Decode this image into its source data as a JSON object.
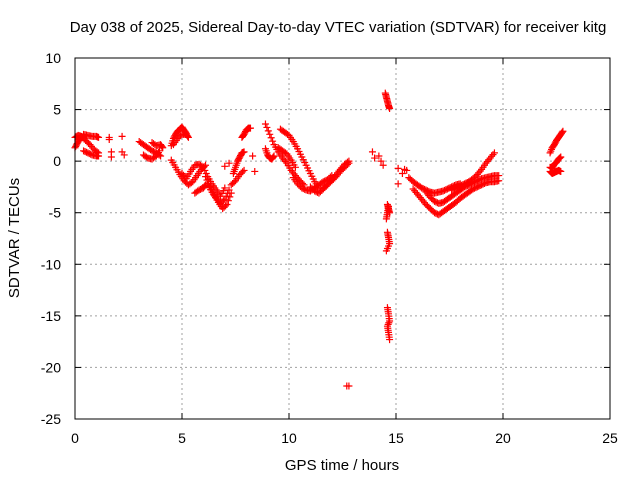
{
  "chart_data": {
    "type": "scatter",
    "title": "Day 038 of 2025, Sidereal Day-to-day VTEC variation (SDTVAR) for receiver kitg",
    "xlabel": "GPS time / hours",
    "ylabel": "SDTVAR / TECUs",
    "xlim": [
      0,
      25
    ],
    "ylim": [
      -25,
      10
    ],
    "xticks": [
      0,
      5,
      10,
      15,
      20,
      25
    ],
    "xtick_labels": [
      "0",
      "5",
      "10",
      "15",
      "20",
      "25"
    ],
    "yticks": [
      10,
      5,
      0,
      -5,
      -10,
      -15,
      -20,
      -25
    ],
    "ytick_labels": [
      "10",
      "5",
      "0",
      "-5",
      "-10",
      "-15",
      "-20",
      "-25"
    ],
    "grid": true,
    "marker": "+",
    "marker_color": "#ff0000",
    "series": [
      {
        "name": "arc-00",
        "x": [
          0.0,
          0.1,
          0.2,
          0.3,
          0.4
        ],
        "y": [
          1.3,
          1.7,
          2.1,
          2.3,
          2.4
        ]
      },
      {
        "name": "arc-01",
        "x": [
          0.0,
          0.15,
          0.3,
          0.5,
          0.7,
          0.9,
          1.1
        ],
        "y": [
          2.3,
          2.5,
          2.4,
          2.0,
          1.6,
          1.1,
          0.8
        ]
      },
      {
        "name": "arc-02",
        "x": [
          0.4,
          0.6,
          0.8,
          1.0,
          1.1
        ],
        "y": [
          2.6,
          2.5,
          2.4,
          2.4,
          2.3
        ]
      },
      {
        "name": "arc-03",
        "x": [
          0.4,
          0.6,
          0.8,
          1.0,
          1.1
        ],
        "y": [
          1.0,
          0.8,
          0.6,
          0.5,
          0.5
        ]
      },
      {
        "name": "scatter-a",
        "x": [
          1.6,
          1.6,
          1.7,
          1.7,
          2.2,
          2.2,
          2.3
        ],
        "y": [
          2.3,
          2.1,
          0.9,
          0.4,
          2.4,
          0.9,
          0.6
        ]
      },
      {
        "name": "arc-04",
        "x": [
          3.0,
          3.2,
          3.4,
          3.6,
          3.8,
          4.0
        ],
        "y": [
          1.9,
          1.6,
          1.3,
          1.0,
          0.8,
          0.5
        ]
      },
      {
        "name": "arc-05",
        "x": [
          3.2,
          3.4,
          3.6,
          3.8,
          3.95
        ],
        "y": [
          0.6,
          0.3,
          0.2,
          0.5,
          1.0
        ]
      },
      {
        "name": "arc-06",
        "x": [
          3.6,
          3.8,
          4.0,
          4.1
        ],
        "y": [
          1.8,
          1.5,
          1.6,
          1.3
        ]
      },
      {
        "name": "arc-07",
        "x": [
          4.5,
          4.6,
          4.7,
          4.8,
          4.9,
          5.0,
          5.1,
          5.2
        ],
        "y": [
          1.5,
          2.2,
          2.6,
          2.9,
          3.1,
          3.3,
          3.0,
          2.7
        ]
      },
      {
        "name": "arc-08",
        "x": [
          4.6,
          4.8,
          5.0,
          5.2,
          5.3
        ],
        "y": [
          1.6,
          2.2,
          2.6,
          2.6,
          2.3
        ]
      },
      {
        "name": "arc-09",
        "x": [
          4.5,
          4.7,
          4.9,
          5.1,
          5.3,
          5.5,
          5.7,
          5.9,
          6.1
        ],
        "y": [
          0.1,
          -0.6,
          -1.3,
          -1.9,
          -2.3,
          -2.0,
          -1.4,
          -0.8,
          -0.4
        ]
      },
      {
        "name": "arc-10",
        "x": [
          5.0,
          5.2,
          5.4,
          5.6,
          5.8,
          6.0,
          6.2,
          6.4,
          6.6,
          6.8,
          7.0
        ],
        "y": [
          -1.2,
          -1.7,
          -1.0,
          -0.4,
          -0.3,
          -0.6,
          -1.5,
          -2.2,
          -2.8,
          -3.4,
          -2.6
        ]
      },
      {
        "name": "arc-11",
        "x": [
          6.1,
          6.3,
          6.5,
          6.7,
          6.9,
          7.1,
          7.3
        ],
        "y": [
          -1.5,
          -2.5,
          -3.3,
          -4.0,
          -4.6,
          -4.2,
          -3.1
        ]
      },
      {
        "name": "arc-12",
        "x": [
          6.2,
          6.4,
          6.6,
          6.8,
          7.0,
          7.2
        ],
        "y": [
          -2.3,
          -3.0,
          -3.6,
          -4.1,
          -3.7,
          -2.8
        ]
      },
      {
        "name": "arc-13",
        "x": [
          5.6,
          5.8,
          6.0,
          6.1
        ],
        "y": [
          -3.1,
          -2.8,
          -2.6,
          -2.3
        ]
      },
      {
        "name": "arc-14",
        "x": [
          7.4,
          7.5,
          7.6,
          7.7,
          7.8,
          7.9
        ],
        "y": [
          -1.2,
          -0.6,
          0.0,
          0.4,
          0.8,
          0.9
        ]
      },
      {
        "name": "arc-15",
        "x": [
          7.3,
          7.5,
          7.7,
          7.9
        ],
        "y": [
          -2.3,
          -1.9,
          -1.3,
          -0.9
        ]
      },
      {
        "name": "arc-16",
        "x": [
          7.8,
          7.9,
          8.0,
          8.1,
          8.2
        ],
        "y": [
          2.3,
          2.6,
          3.0,
          3.2,
          3.2
        ]
      },
      {
        "name": "scatter-b",
        "x": [
          7.0,
          7.2,
          8.3,
          8.4
        ],
        "y": [
          -0.5,
          -0.2,
          0.5,
          -1.0
        ]
      },
      {
        "name": "arc-17",
        "x": [
          8.9,
          9.1,
          9.3,
          9.5,
          9.7,
          9.9,
          10.1,
          10.3,
          10.5,
          10.7
        ],
        "y": [
          3.6,
          2.6,
          1.6,
          0.9,
          0.3,
          -0.2,
          -0.9,
          -1.4,
          -1.9,
          -2.3
        ]
      },
      {
        "name": "arc-18",
        "x": [
          8.9,
          9.0,
          9.1,
          9.2,
          9.3
        ],
        "y": [
          1.2,
          0.6,
          0.3,
          0.2,
          0.5
        ]
      },
      {
        "name": "arc-19",
        "x": [
          9.6,
          9.8,
          10.0,
          10.2,
          10.4,
          10.6,
          10.8,
          11.0,
          11.2,
          11.4
        ],
        "y": [
          3.1,
          2.8,
          2.5,
          1.9,
          1.2,
          0.4,
          -0.4,
          -1.2,
          -2.0,
          -2.6
        ]
      },
      {
        "name": "arc-20",
        "x": [
          9.5,
          9.7,
          9.9,
          10.1,
          10.3
        ],
        "y": [
          1.3,
          1.0,
          0.7,
          0.1,
          -0.6
        ]
      },
      {
        "name": "arc-21",
        "x": [
          10.2,
          10.4,
          10.6,
          10.8,
          11.0,
          11.2,
          11.4,
          11.6,
          11.8,
          12.0
        ],
        "y": [
          -1.6,
          -2.2,
          -2.6,
          -2.8,
          -2.9,
          -2.6,
          -2.3,
          -2.0,
          -1.8,
          -1.4
        ]
      },
      {
        "name": "arc-22",
        "x": [
          11.0,
          11.2,
          11.4,
          11.6,
          11.8,
          12.0,
          12.2,
          12.4,
          12.6,
          12.8
        ],
        "y": [
          -2.5,
          -2.9,
          -3.1,
          -2.7,
          -2.3,
          -1.8,
          -1.3,
          -0.8,
          -0.3,
          0.0
        ]
      },
      {
        "name": "arc-23",
        "x": [
          11.6,
          11.8,
          12.0,
          12.2,
          12.4,
          12.6,
          12.8
        ],
        "y": [
          -2.6,
          -2.3,
          -1.9,
          -1.5,
          -1.0,
          -0.6,
          -0.2
        ]
      },
      {
        "name": "scatter-c",
        "x": [
          12.7,
          12.8
        ],
        "y": [
          -21.8,
          -21.8
        ]
      },
      {
        "name": "scatter-d",
        "x": [
          13.9,
          14.0,
          14.2,
          14.3,
          14.4
        ],
        "y": [
          0.9,
          0.3,
          0.5,
          0.0,
          -0.4
        ]
      },
      {
        "name": "arc-24",
        "x": [
          14.5,
          14.55,
          14.6,
          14.65,
          14.7
        ],
        "y": [
          6.6,
          6.2,
          5.8,
          5.4,
          5.1
        ]
      },
      {
        "name": "arc-25",
        "x": [
          14.6,
          14.65,
          14.7
        ],
        "y": [
          -4.2,
          -4.6,
          -5.0
        ]
      },
      {
        "name": "arc-26",
        "x": [
          14.55,
          14.6,
          14.65
        ],
        "y": [
          -5.6,
          -5.0,
          -4.4
        ]
      },
      {
        "name": "arc-27",
        "x": [
          14.6,
          14.65,
          14.7,
          14.55
        ],
        "y": [
          -6.9,
          -7.4,
          -8.0,
          -8.7
        ]
      },
      {
        "name": "arc-28",
        "x": [
          14.6,
          14.65,
          14.7,
          14.6,
          14.65,
          14.7
        ],
        "y": [
          -14.2,
          -14.8,
          -15.5,
          -16.0,
          -16.6,
          -17.3
        ]
      },
      {
        "name": "scatter-e",
        "x": [
          15.1,
          15.3,
          15.4,
          15.5,
          15.1
        ],
        "y": [
          -0.7,
          -1.2,
          -0.8,
          -0.9,
          -2.2
        ]
      },
      {
        "name": "arc-29",
        "x": [
          15.6,
          15.8,
          16.0,
          16.2,
          16.4,
          16.6,
          16.8,
          17.0,
          17.2,
          17.4,
          17.6,
          17.8,
          18.0
        ],
        "y": [
          -1.6,
          -2.0,
          -2.3,
          -2.6,
          -2.8,
          -3.0,
          -3.1,
          -3.0,
          -2.9,
          -2.7,
          -2.5,
          -2.3,
          -2.2
        ]
      },
      {
        "name": "arc-30",
        "x": [
          15.8,
          16.0,
          16.2,
          16.4,
          16.6,
          16.8,
          17.0,
          17.2,
          17.4,
          17.6,
          17.8,
          18.0,
          18.2,
          18.4,
          18.6,
          18.8,
          19.0,
          19.2,
          19.4,
          19.6,
          19.8
        ],
        "y": [
          -2.7,
          -3.2,
          -3.7,
          -4.2,
          -4.6,
          -5.0,
          -5.2,
          -4.9,
          -4.6,
          -4.3,
          -4.0,
          -3.6,
          -3.3,
          -3.0,
          -2.7,
          -2.5,
          -2.3,
          -2.1,
          -2.0,
          -2.0,
          -1.9
        ]
      },
      {
        "name": "arc-31",
        "x": [
          16.4,
          16.6,
          16.8,
          17.0,
          17.2,
          17.4,
          17.6,
          17.8,
          18.0,
          18.2,
          18.4,
          18.6,
          18.8,
          19.0,
          19.2,
          19.4,
          19.6,
          19.8
        ],
        "y": [
          -3.0,
          -3.5,
          -3.9,
          -4.1,
          -4.0,
          -3.7,
          -3.4,
          -3.1,
          -2.8,
          -2.5,
          -2.3,
          -2.1,
          -1.9,
          -1.7,
          -1.6,
          -1.5,
          -1.4,
          -1.4
        ]
      },
      {
        "name": "arc-32",
        "x": [
          17.6,
          17.8,
          18.0,
          18.2,
          18.4,
          18.6,
          18.8,
          19.0,
          19.2,
          19.4,
          19.6
        ],
        "y": [
          -2.8,
          -2.6,
          -2.4,
          -2.2,
          -2.0,
          -1.7,
          -1.3,
          -0.8,
          -0.2,
          0.3,
          0.8
        ]
      },
      {
        "name": "arc-33",
        "x": [
          22.2,
          22.3,
          22.4,
          22.5,
          22.6,
          22.7,
          22.8
        ],
        "y": [
          0.8,
          1.3,
          1.6,
          2.0,
          2.3,
          2.6,
          2.9
        ]
      },
      {
        "name": "arc-34",
        "x": [
          22.2,
          22.3,
          22.4,
          22.5,
          22.6,
          22.7
        ],
        "y": [
          -0.6,
          -0.7,
          -0.3,
          -0.1,
          0.2,
          0.4
        ]
      },
      {
        "name": "arc-35",
        "x": [
          22.2,
          22.3,
          22.4,
          22.5,
          22.6,
          22.7
        ],
        "y": [
          -1.0,
          -1.2,
          -1.1,
          -1.0,
          -0.9,
          -1.0
        ]
      }
    ]
  }
}
